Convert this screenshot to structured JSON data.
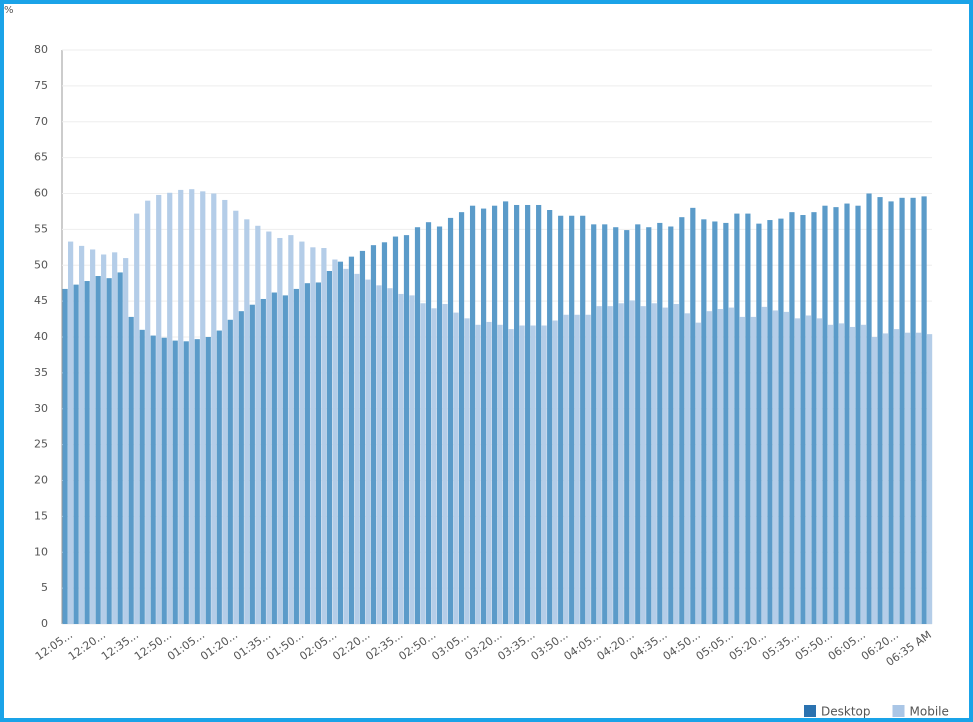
{
  "chart_data": {
    "type": "bar",
    "y_unit": "%",
    "categories": [
      "12:05...",
      null,
      null,
      "12:20...",
      null,
      null,
      "12:35...",
      null,
      null,
      "12:50...",
      null,
      null,
      "01:05...",
      null,
      null,
      "01:20...",
      null,
      null,
      "01:35...",
      null,
      null,
      "01:50...",
      null,
      null,
      "02:05...",
      null,
      null,
      "02:20...",
      null,
      null,
      "02:35...",
      null,
      null,
      "02:50...",
      null,
      null,
      "03:05...",
      null,
      null,
      "03:20...",
      null,
      null,
      "03:35...",
      null,
      null,
      "03:50...",
      null,
      null,
      "04:05...",
      null,
      null,
      "04:20...",
      null,
      null,
      "04:35...",
      null,
      null,
      "04:50...",
      null,
      null,
      "05:05...",
      null,
      null,
      "05:20...",
      null,
      null,
      "05:35...",
      null,
      null,
      "05:50...",
      null,
      null,
      "06:05...",
      null,
      null,
      "06:20...",
      null,
      null,
      "06:35 AM"
    ],
    "series": [
      {
        "name": "Desktop",
        "color": "#5b9bc9",
        "legend_color": "#2a72b0",
        "values": [
          46.7,
          47.3,
          47.8,
          48.5,
          48.2,
          49.0,
          42.8,
          41.0,
          40.2,
          39.9,
          39.5,
          39.4,
          39.7,
          40.0,
          40.9,
          42.4,
          43.6,
          44.5,
          45.3,
          46.2,
          45.8,
          46.7,
          47.5,
          47.6,
          49.2,
          50.5,
          51.2,
          52.0,
          52.8,
          53.2,
          54.0,
          54.2,
          55.3,
          56.0,
          55.4,
          56.6,
          57.4,
          58.3,
          57.9,
          58.3,
          58.9,
          58.4,
          58.4,
          58.4,
          57.7,
          56.9,
          56.9,
          56.9,
          55.7,
          55.7,
          55.3,
          54.9,
          55.7,
          55.3,
          55.9,
          55.4,
          56.7,
          58.0,
          56.4,
          56.1,
          55.9,
          57.2,
          57.2,
          55.8,
          56.3,
          56.5,
          57.4,
          57.0,
          57.4,
          58.3,
          58.1,
          58.6,
          58.3,
          60.0,
          59.5,
          58.9,
          59.4,
          59.4,
          59.6
        ]
      },
      {
        "name": "Mobile",
        "color": "#b4cde8",
        "legend_color": "#aac6e6",
        "values": [
          53.3,
          52.7,
          52.2,
          51.5,
          51.8,
          51.0,
          57.2,
          59.0,
          59.8,
          60.1,
          60.5,
          60.6,
          60.3,
          60.0,
          59.1,
          57.6,
          56.4,
          55.5,
          54.7,
          53.8,
          54.2,
          53.3,
          52.5,
          52.4,
          50.8,
          49.5,
          48.8,
          48.0,
          47.2,
          46.8,
          46.0,
          45.8,
          44.7,
          44.0,
          44.6,
          43.4,
          42.6,
          41.7,
          42.1,
          41.7,
          41.1,
          41.6,
          41.6,
          41.6,
          42.3,
          43.1,
          43.1,
          43.1,
          44.3,
          44.3,
          44.7,
          45.1,
          44.3,
          44.7,
          44.1,
          44.6,
          43.3,
          42.0,
          43.6,
          43.9,
          44.1,
          42.8,
          42.8,
          44.2,
          43.7,
          43.5,
          42.6,
          43.0,
          42.6,
          41.7,
          41.9,
          41.4,
          41.7,
          40.0,
          40.5,
          41.1,
          40.6,
          40.6,
          40.4
        ]
      }
    ],
    "ylim": [
      0,
      80
    ],
    "yticks": [
      0,
      5,
      10,
      15,
      20,
      25,
      30,
      35,
      40,
      45,
      50,
      55,
      60,
      65,
      70,
      75,
      80
    ],
    "grid": true
  }
}
